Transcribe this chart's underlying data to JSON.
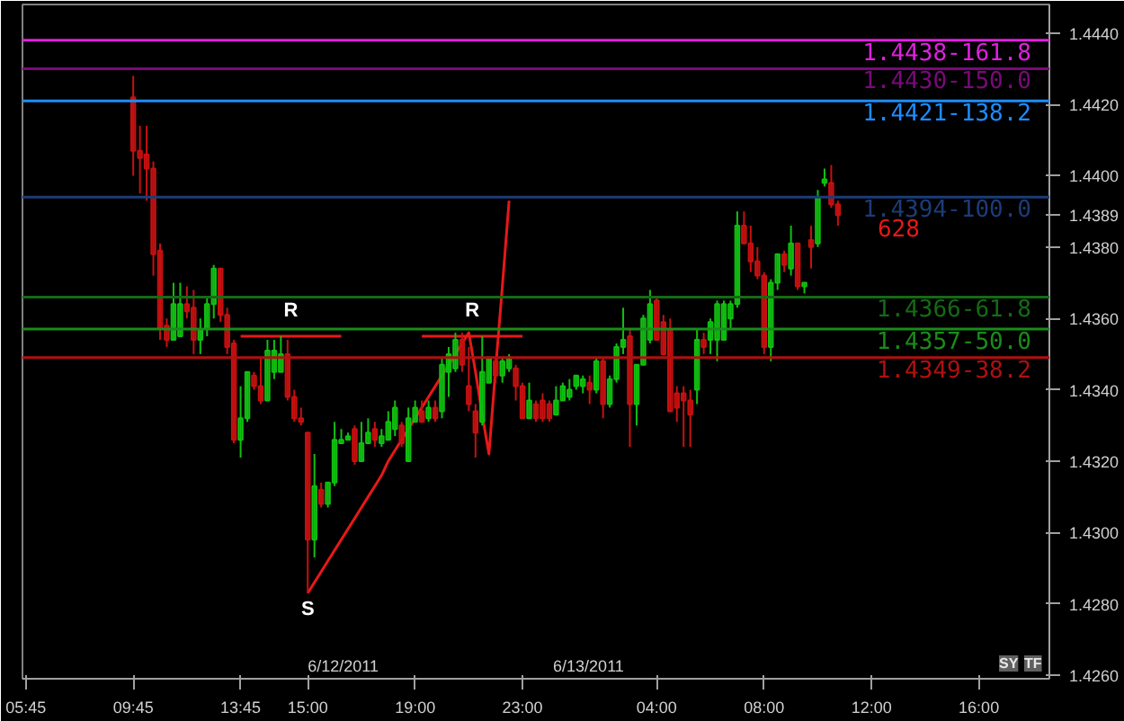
{
  "chart_data": {
    "type": "candlestick",
    "categories": [
      "05:45",
      null,
      null,
      null,
      null,
      null,
      null,
      null,
      null,
      null,
      null,
      null,
      null,
      null,
      null,
      null,
      "09:45",
      null,
      null,
      null,
      null,
      null,
      null,
      null,
      null,
      null,
      null,
      null,
      null,
      null,
      null,
      null,
      "13:45",
      null,
      null,
      null,
      null,
      null,
      null,
      null,
      null,
      null,
      "15:00",
      null,
      null,
      null,
      null,
      null,
      null,
      null,
      null,
      null,
      null,
      null,
      null,
      null,
      null,
      null,
      "19:00",
      null,
      null,
      null,
      null,
      null,
      null,
      null,
      null,
      null,
      null,
      null,
      null,
      null,
      null,
      null,
      "23:00",
      null,
      null,
      null,
      null,
      null,
      null,
      null,
      null,
      null,
      null,
      null,
      null,
      null,
      null,
      null,
      null,
      null,
      null,
      null,
      "04:00",
      null,
      null,
      null,
      null,
      null,
      null,
      null,
      null,
      null,
      null,
      null,
      null,
      null,
      null,
      null,
      "08:00",
      null,
      null,
      null,
      null,
      null,
      null,
      null,
      null,
      null,
      null,
      null,
      null,
      null,
      null,
      null,
      "12:00",
      null,
      null,
      null,
      null,
      null,
      null,
      null,
      null,
      null,
      null,
      null,
      null,
      null,
      null,
      null,
      "16:00",
      null,
      null,
      null,
      null,
      null,
      null,
      null,
      null,
      null,
      null
    ],
    "ohlc": [
      null,
      null,
      null,
      null,
      null,
      null,
      null,
      null,
      null,
      null,
      null,
      null,
      null,
      null,
      null,
      null,
      [
        1.4422,
        1.4428,
        1.44,
        1.4407
      ],
      [
        1.4407,
        1.4414,
        1.4395,
        1.4405
      ],
      [
        1.4406,
        1.4414,
        1.4393,
        1.4402
      ],
      [
        1.4402,
        1.4404,
        1.4372,
        1.4378
      ],
      [
        1.4379,
        1.4381,
        1.4354,
        1.4357
      ],
      [
        1.4358,
        1.436,
        1.4352,
        1.4354
      ],
      [
        1.4354,
        1.437,
        1.4354,
        1.4364
      ],
      [
        1.4355,
        1.437,
        1.4355,
        1.4364
      ],
      [
        1.4364,
        1.4369,
        1.436,
        1.4362
      ],
      [
        1.4363,
        1.4368,
        1.435,
        1.4354
      ],
      [
        1.4354,
        1.436,
        1.435,
        1.4357
      ],
      [
        1.4357,
        1.4366,
        1.4355,
        1.4364
      ],
      [
        1.4364,
        1.4375,
        1.436,
        1.4374
      ],
      [
        1.4374,
        1.4374,
        1.4359,
        1.4361
      ],
      [
        1.4361,
        1.4363,
        1.435,
        1.4352
      ],
      [
        1.4353,
        1.4354,
        1.4325,
        1.4326
      ],
      [
        1.4326,
        1.4341,
        1.4321,
        1.4332
      ],
      [
        1.4332,
        1.4345,
        1.4331,
        1.4345
      ],
      [
        1.4344,
        1.4345,
        1.434,
        1.4341
      ],
      [
        1.4341,
        1.4349,
        1.4336,
        1.4337
      ],
      [
        1.4337,
        1.4354,
        1.4337,
        1.4351
      ],
      [
        1.4345,
        1.4354,
        1.4343,
        1.4351
      ],
      [
        1.4345,
        1.4355,
        1.4345,
        1.435
      ],
      [
        1.435,
        1.4354,
        1.4337,
        1.4338
      ],
      [
        1.4338,
        1.434,
        1.4331,
        1.4332
      ],
      [
        1.4332,
        1.4335,
        1.433,
        1.4331
      ],
      [
        1.4328,
        1.4328,
        1.4283,
        1.4298
      ],
      [
        1.4298,
        1.4322,
        1.4293,
        1.4313
      ],
      [
        1.4312,
        1.4314,
        1.4307,
        1.4308
      ],
      [
        1.4308,
        1.4314,
        1.4307,
        1.4314
      ],
      [
        1.4314,
        1.4331,
        1.4313,
        1.4326
      ],
      [
        1.4325,
        1.4329,
        1.4325,
        1.4326
      ],
      [
        1.4326,
        1.4328,
        1.4326,
        1.4327
      ],
      [
        1.4329,
        1.433,
        1.4319,
        1.432
      ],
      [
        1.432,
        1.4331,
        1.432,
        1.4325
      ],
      [
        1.4325,
        1.4332,
        1.4325,
        1.4328
      ],
      [
        1.4329,
        1.4331,
        1.4324,
        1.4326
      ],
      [
        1.4325,
        1.4329,
        1.4324,
        1.4327
      ],
      [
        1.4326,
        1.4334,
        1.4326,
        1.4331
      ],
      [
        1.4329,
        1.4337,
        1.4327,
        1.4335
      ],
      [
        1.433,
        1.4331,
        1.4324,
        1.4325
      ],
      [
        1.432,
        1.4335,
        1.432,
        1.4332
      ],
      [
        1.4331,
        1.4337,
        1.4331,
        1.4335
      ],
      [
        1.4334,
        1.4337,
        1.4331,
        1.4331
      ],
      [
        1.4332,
        1.4337,
        1.4331,
        1.4335
      ],
      [
        1.4335,
        1.4337,
        1.4331,
        1.4332
      ],
      [
        1.4334,
        1.4349,
        1.4332,
        1.4347
      ],
      [
        1.4345,
        1.4352,
        1.4338,
        1.435
      ],
      [
        1.4346,
        1.4356,
        1.4345,
        1.4354
      ],
      [
        1.4354,
        1.4356,
        1.4345,
        1.4347
      ],
      [
        1.4341,
        1.4352,
        1.4334,
        1.4336
      ],
      [
        1.4334,
        1.4336,
        1.4321,
        1.4328
      ],
      [
        1.4331,
        1.4355,
        1.433,
        1.4345
      ],
      [
        1.4342,
        1.4349,
        1.4342,
        1.4349
      ],
      [
        1.4348,
        1.4349,
        1.4342,
        1.4344
      ],
      [
        1.4344,
        1.4349,
        1.4342,
        1.4348
      ],
      [
        1.4346,
        1.435,
        1.4345,
        1.4349
      ],
      [
        1.4346,
        1.4347,
        1.4337,
        1.4341
      ],
      [
        1.4341,
        1.4342,
        1.4332,
        1.4332
      ],
      [
        1.4332,
        1.4342,
        1.4332,
        1.4337
      ],
      [
        1.4336,
        1.4337,
        1.4331,
        1.4332
      ],
      [
        1.4337,
        1.4339,
        1.4331,
        1.4332
      ],
      [
        1.4336,
        1.4337,
        1.4331,
        1.4332
      ],
      [
        1.4333,
        1.4341,
        1.4333,
        1.4337
      ],
      [
        1.4337,
        1.4342,
        1.4337,
        1.4341
      ],
      [
        1.4338,
        1.4343,
        1.4337,
        1.434
      ],
      [
        1.4341,
        1.4344,
        1.434,
        1.4344
      ],
      [
        1.4341,
        1.4344,
        1.4339,
        1.4343
      ],
      [
        1.4342,
        1.4344,
        1.4336,
        1.434
      ],
      [
        1.434,
        1.4349,
        1.4339,
        1.4348
      ],
      [
        1.4348,
        1.4349,
        1.4332,
        1.4336
      ],
      [
        1.4336,
        1.4344,
        1.4335,
        1.4343
      ],
      [
        1.4343,
        1.4353,
        1.4342,
        1.4352
      ],
      [
        1.4352,
        1.4363,
        1.435,
        1.4354
      ],
      [
        1.4355,
        1.4357,
        1.4324,
        1.4336
      ],
      [
        1.4336,
        1.4347,
        1.433,
        1.4347
      ],
      [
        1.4347,
        1.4361,
        1.4347,
        1.436
      ],
      [
        1.4354,
        1.4368,
        1.4353,
        1.4364
      ],
      [
        1.4365,
        1.4366,
        1.4354,
        1.4354
      ],
      [
        1.4359,
        1.4361,
        1.435,
        1.435
      ],
      [
        1.4357,
        1.436,
        1.4334,
        1.4334
      ],
      [
        1.4339,
        1.4341,
        1.4331,
        1.4335
      ],
      [
        1.4339,
        1.4341,
        1.4324,
        1.4337
      ],
      [
        1.4337,
        1.434,
        1.4324,
        1.4333
      ],
      [
        1.434,
        1.4357,
        1.4336,
        1.4354
      ],
      [
        1.4354,
        1.4356,
        1.435,
        1.4352
      ],
      [
        1.4354,
        1.436,
        1.435,
        1.4359
      ],
      [
        1.4354,
        1.4365,
        1.4348,
        1.4364
      ],
      [
        1.4354,
        1.4365,
        1.4354,
        1.4364
      ],
      [
        1.436,
        1.4365,
        1.4357,
        1.4364
      ],
      [
        1.4364,
        1.439,
        1.4363,
        1.4386
      ],
      [
        1.4386,
        1.439,
        1.4381,
        1.4381
      ],
      [
        1.4381,
        1.4386,
        1.4373,
        1.4376
      ],
      [
        1.4376,
        1.438,
        1.4371,
        1.4372
      ],
      [
        1.4372,
        1.4373,
        1.435,
        1.4352
      ],
      [
        1.4352,
        1.4371,
        1.4348,
        1.437
      ],
      [
        1.437,
        1.4378,
        1.4368,
        1.4378
      ],
      [
        1.4378,
        1.4379,
        1.4373,
        1.4375
      ],
      [
        1.4374,
        1.4386,
        1.4372,
        1.4381
      ],
      [
        1.4381,
        1.4381,
        1.4368,
        1.4369
      ],
      [
        1.4369,
        1.437,
        1.4367,
        1.437
      ],
      [
        1.4382,
        1.4386,
        1.4374,
        1.438
      ],
      [
        1.4381,
        1.4396,
        1.438,
        1.4394
      ],
      [
        1.4398,
        1.4402,
        1.4397,
        1.4399
      ],
      [
        1.4398,
        1.4403,
        1.4391,
        1.4392
      ],
      [
        1.4392,
        1.4393,
        1.4386,
        1.4389
      ],
      null,
      null,
      null,
      null,
      null,
      null,
      null,
      null,
      null,
      null,
      null,
      null,
      null,
      null,
      null,
      null,
      null,
      null,
      null,
      null,
      null,
      null,
      null,
      null,
      null,
      null,
      null,
      null,
      null,
      null,
      null
    ],
    "colors": [
      null,
      null,
      null,
      null,
      null,
      null,
      null,
      null,
      null,
      null,
      null,
      null,
      null,
      null,
      null,
      null,
      "#c81010",
      "#c81010",
      "#c81010",
      "#c81010",
      "#c81010",
      "#c81010",
      "#10c010",
      "#10c010",
      "#c81010",
      "#c81010",
      "#10c010",
      "#10c010",
      "#10c010",
      "#c81010",
      "#c81010",
      "#c81010",
      "#10c010",
      "#10c010",
      "#c81010",
      "#c81010",
      "#10c010",
      "#10c010",
      "#10c010",
      "#c81010",
      "#c81010",
      "#c81010",
      "#c81010",
      "#10c010",
      "#c81010",
      "#10c010",
      "#10c010",
      "#10c010",
      "#10c010",
      "#c81010",
      "#10c010",
      "#10c010",
      "#c81010",
      "#10c010",
      "#10c010",
      "#10c010",
      "#c81010",
      "#10c010",
      "#10c010",
      "#c81010",
      "#10c010",
      "#c81010",
      "#10c010",
      "#10c010",
      "#10c010",
      "#c81010",
      "#c81010",
      "#c81010",
      "#10c010",
      "#10c010",
      "#c81010",
      "#10c010",
      "#10c010",
      "#c81010",
      "#c81010",
      "#10c010",
      "#c81010",
      "#c81010",
      "#c81010",
      "#10c010",
      "#10c010",
      "#10c010",
      "#10c010",
      "#10c010",
      "#c81010",
      "#10c010",
      "#c81010",
      "#10c010",
      "#10c010",
      "#10c010",
      "#c81010",
      "#10c010",
      "#10c010",
      "#10c010",
      "#c81010",
      "#c81010",
      "#c81010",
      "#c81010",
      "#c81010",
      "#c81010",
      "#10c010",
      "#c81010",
      "#10c010",
      "#10c010",
      "#10c010",
      "#10c010",
      "#10c010",
      "#c81010",
      "#c81010",
      "#c81010",
      "#c81010",
      "#10c010",
      "#10c010",
      "#c81010",
      "#10c010",
      "#c81010",
      "#10c010",
      "#c81010",
      "#10c010",
      "#10c010",
      "#c81010",
      "#c81010",
      null,
      null,
      null,
      null,
      null,
      null,
      null,
      null,
      null,
      null,
      null,
      null,
      null,
      null,
      null,
      null,
      null,
      null,
      null,
      null,
      null,
      null,
      null,
      null,
      null,
      null,
      null,
      null,
      null,
      null,
      null
    ],
    "series": [
      {
        "type": "line",
        "color": "#e81818",
        "values": [
          null,
          null,
          null,
          null,
          null,
          null,
          null,
          null,
          null,
          null,
          null,
          null,
          null,
          null,
          null,
          null,
          null,
          null,
          null,
          null,
          null,
          null,
          null,
          null,
          null,
          null,
          null,
          null,
          null,
          null,
          null,
          null,
          null,
          null,
          null,
          null,
          null,
          null,
          null,
          null,
          null,
          null,
          1.4283,
          1.4286,
          1.4289,
          1.4292,
          1.4295,
          1.4298,
          1.4301,
          1.4304,
          1.4307,
          1.431,
          1.4313,
          1.4316,
          1.432,
          1.4323,
          1.4326,
          1.4329,
          1.4332,
          1.4335,
          1.4338,
          1.4341,
          1.4344,
          1.4347,
          1.435,
          1.4353,
          1.4356,
          1.4345,
          1.4333,
          1.4322,
          1.4346,
          1.4369,
          1.4393,
          null,
          null,
          null,
          null,
          null,
          null,
          null,
          null,
          null,
          null,
          null,
          null,
          null,
          null,
          null,
          null,
          null,
          null,
          null,
          null,
          null,
          null,
          null,
          null,
          null,
          null,
          null,
          null,
          null,
          null,
          null,
          null,
          null,
          null,
          null,
          null,
          null,
          null,
          null,
          null,
          null,
          null,
          null,
          null,
          null,
          null,
          null,
          null,
          null,
          null,
          null,
          null,
          null,
          null,
          null,
          null,
          null,
          null,
          null,
          null,
          null,
          null,
          null,
          null,
          null,
          null,
          null,
          null,
          null,
          null,
          null,
          null,
          null,
          null,
          null,
          null,
          null,
          null,
          null,
          null
        ]
      },
      {
        "type": "line",
        "color": "#e81818",
        "values": [
          null,
          null,
          null,
          null,
          null,
          null,
          null,
          null,
          null,
          null,
          null,
          null,
          null,
          null,
          null,
          null,
          null,
          null,
          null,
          null,
          null,
          null,
          null,
          null,
          null,
          null,
          null,
          null,
          null,
          null,
          null,
          null,
          1.4355,
          1.4355,
          1.4355,
          1.4355,
          1.4355,
          1.4355,
          1.4355,
          1.4355,
          1.4355,
          1.4355,
          1.4355,
          1.4355,
          1.4355,
          1.4355,
          1.4355,
          1.4355,
          null,
          null,
          null,
          null,
          null,
          null,
          null,
          null,
          null,
          null,
          null,
          null,
          null,
          null,
          null,
          null,
          null,
          null,
          null,
          null,
          null,
          null,
          null,
          null,
          null,
          null,
          null,
          null,
          null,
          null,
          null,
          null,
          null,
          null,
          null,
          null,
          null,
          null,
          null,
          null,
          null,
          null,
          null,
          null,
          null,
          null,
          null,
          null,
          null,
          null,
          null,
          null,
          null,
          null,
          null,
          null,
          null,
          null,
          null,
          null,
          null,
          null,
          null,
          null,
          null,
          null,
          null,
          null,
          null,
          null,
          null,
          null,
          null,
          null,
          null,
          null,
          null,
          null,
          null,
          null,
          null,
          null,
          null,
          null,
          null,
          null,
          null,
          null,
          null,
          null,
          null,
          null,
          null,
          null,
          null,
          null,
          null,
          null,
          null,
          null,
          null,
          null,
          null,
          null,
          null
        ]
      },
      {
        "type": "line",
        "color": "#e81818",
        "values": [
          null,
          null,
          null,
          null,
          null,
          null,
          null,
          null,
          null,
          null,
          null,
          null,
          null,
          null,
          null,
          null,
          null,
          null,
          null,
          null,
          null,
          null,
          null,
          null,
          null,
          null,
          null,
          null,
          null,
          null,
          null,
          null,
          null,
          null,
          null,
          null,
          null,
          null,
          null,
          null,
          null,
          null,
          null,
          null,
          null,
          null,
          null,
          null,
          null,
          null,
          null,
          null,
          null,
          null,
          null,
          null,
          null,
          null,
          null,
          1.4355,
          1.4355,
          1.4355,
          1.4355,
          1.4355,
          1.4355,
          1.4355,
          1.4355,
          1.4355,
          1.4355,
          1.4355,
          1.4355,
          1.4355,
          1.4355,
          1.4355,
          1.4355,
          null,
          null,
          null,
          null,
          null,
          null,
          null,
          null,
          null,
          null,
          null,
          null,
          null,
          null,
          null,
          null,
          null,
          null,
          null,
          null,
          null,
          null,
          null,
          null,
          null,
          null,
          null,
          null,
          null,
          null,
          null,
          null,
          null,
          null,
          null,
          null,
          null,
          null,
          null,
          null,
          null,
          null,
          null,
          null,
          null,
          null,
          null,
          null,
          null,
          null,
          null,
          null,
          null,
          null,
          null,
          null,
          null,
          null,
          null,
          null,
          null,
          null,
          null,
          null,
          null,
          null,
          null,
          null,
          null,
          null,
          null,
          null,
          null,
          null,
          null,
          null,
          null,
          null
        ]
      }
    ],
    "ref_lines": [
      {
        "axis": "y",
        "value": 1.4438,
        "label": "1.4438-161.8",
        "color": "#e020e0"
      },
      {
        "axis": "y",
        "value": 1.443,
        "label": "1.4430-150.0",
        "color": "#7a0a7a"
      },
      {
        "axis": "y",
        "value": 1.4421,
        "label": "1.4421-138.2",
        "color": "#1e8cff"
      },
      {
        "axis": "y",
        "value": 1.4394,
        "label": "1.4394-100.0",
        "color": "#1c3c78"
      },
      {
        "axis": "y",
        "value": 1.4366,
        "label": "1.4366-61.8",
        "color": "#156a15"
      },
      {
        "axis": "y",
        "value": 1.4357,
        "label": "1.4357-50.0",
        "color": "#1a8c1a"
      },
      {
        "axis": "y",
        "value": 1.4349,
        "label": "1.4349-38.2",
        "color": "#b01010"
      }
    ],
    "annotations": [
      {
        "text": "R",
        "y": 1.4355
      },
      {
        "text": "R",
        "y": 1.4355
      },
      {
        "text": "S",
        "y": 1.4283
      },
      "628",
      "6/12/2011",
      "6/13/2011",
      "SY",
      "TF"
    ],
    "ylim": [
      1.4259,
      1.4448
    ],
    "yticks": [
      {
        "value": 1.426,
        "label": "1.4260"
      },
      {
        "value": 1.428,
        "label": "1.4280"
      },
      {
        "value": 1.43,
        "label": "1.4300"
      },
      {
        "value": 1.432,
        "label": "1.4320"
      },
      {
        "value": 1.434,
        "label": "1.4340"
      },
      {
        "value": 1.436,
        "label": "1.4360"
      },
      {
        "value": 1.438,
        "label": "1.4380"
      },
      {
        "value": 1.4389,
        "label": "1.4389"
      },
      {
        "value": 1.44,
        "label": "1.4400"
      },
      {
        "value": 1.442,
        "label": "1.4420"
      },
      {
        "value": 1.444,
        "label": "1.4440"
      }
    ],
    "grid": false
  }
}
